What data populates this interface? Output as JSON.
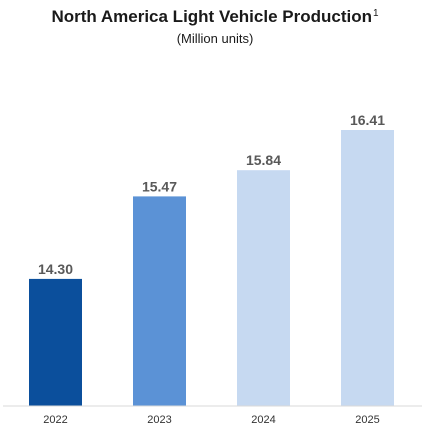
{
  "chart_data": {
    "type": "bar",
    "title": "North America Light Vehicle Production",
    "title_footnote": "1",
    "subtitle": "(Million units)",
    "categories": [
      "2022",
      "2023",
      "2024",
      "2025"
    ],
    "values": [
      14.3,
      15.47,
      15.84,
      16.41
    ],
    "value_labels": [
      "14.30",
      "15.47",
      "15.84",
      "16.41"
    ],
    "bar_colors": [
      "#0b4f9c",
      "#5b92d6",
      "#c6d9f1",
      "#c6d9f1"
    ],
    "ylim": [
      12.5,
      16.41
    ],
    "grid": false,
    "legend": "none"
  }
}
